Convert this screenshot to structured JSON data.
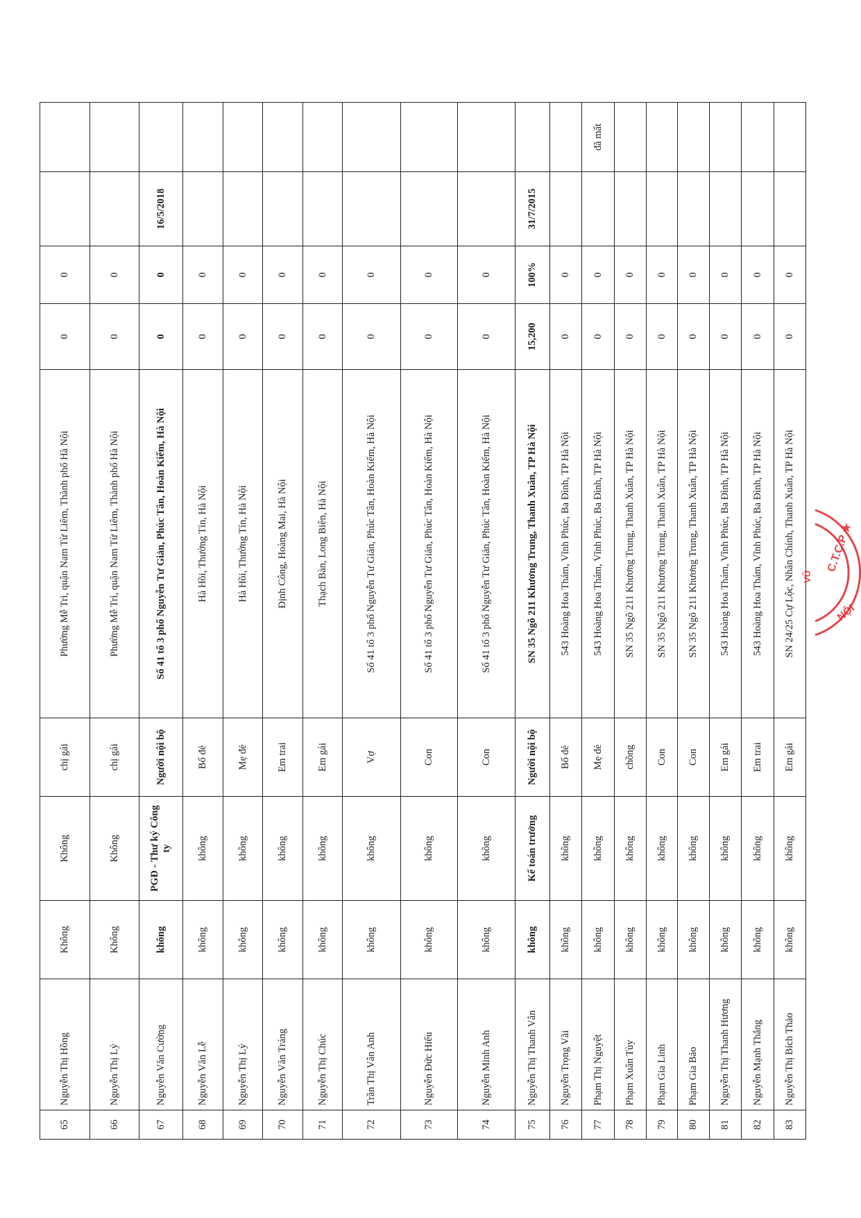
{
  "document": {
    "rows": [
      {
        "stt": "65",
        "name": "Nguyễn Thị Hồng",
        "col3": "Không",
        "position": "Không",
        "relation": "chị gái",
        "address": "Phường Mễ Trì, quận Nam Từ Liêm, Thành phố Hà Nội",
        "shares": "0",
        "percent": "0",
        "date": "",
        "note": "",
        "bold": false
      },
      {
        "stt": "66",
        "name": "Nguyễn Thị Lý",
        "col3": "Không",
        "position": "Không",
        "relation": "chị gái",
        "address": "Phường Mễ Trì, quận Nam Từ Liêm, Thành phố Hà Nội",
        "shares": "0",
        "percent": "0",
        "date": "",
        "note": "",
        "bold": false
      },
      {
        "stt": "67",
        "name": "Nguyễn Văn Cường",
        "col3": "không",
        "position": "PGĐ - Thư ký Công ty",
        "relation": "Người nội bộ",
        "address": "Số 41 tổ 3 phố Nguyễn Tư Giản, Phúc Tân, Hoàn Kiếm, Hà Nội",
        "shares": "0",
        "percent": "0",
        "date": "16/5/2018",
        "note": "",
        "bold": true
      },
      {
        "stt": "68",
        "name": "Nguyễn Văn Lễ",
        "col3": "không",
        "position": "không",
        "relation": "Bố đẻ",
        "address": "Hà Hồi, Thường Tín, Hà Nội",
        "shares": "0",
        "percent": "0",
        "date": "",
        "note": "",
        "bold": false
      },
      {
        "stt": "69",
        "name": "Nguyễn Thị Lý",
        "col3": "không",
        "position": "không",
        "relation": "Mẹ đẻ",
        "address": "Hà Hồi, Thường Tín, Hà Nội",
        "shares": "0",
        "percent": "0",
        "date": "",
        "note": "",
        "bold": false
      },
      {
        "stt": "70",
        "name": "Nguyễn Văn Tráng",
        "col3": "không",
        "position": "không",
        "relation": "Em trai",
        "address": "Định Công, Hoàng Mai, Hà Nội",
        "shares": "0",
        "percent": "0",
        "date": "",
        "note": "",
        "bold": false
      },
      {
        "stt": "71",
        "name": "Nguyễn Thị Chúc",
        "col3": "không",
        "position": "không",
        "relation": "Em gái",
        "address": "Thạch Bàn, Long Biên, Hà Nội",
        "shares": "0",
        "percent": "0",
        "date": "",
        "note": "",
        "bold": false
      },
      {
        "stt": "72",
        "name": "Trần Thị Vân Anh",
        "col3": "không",
        "position": "không",
        "relation": "Vợ",
        "address": "Số 41 tổ 3 phố Nguyễn Tư Giản, Phúc Tân, Hoàn Kiếm, Hà Nội",
        "shares": "0",
        "percent": "0",
        "date": "",
        "note": "",
        "bold": false
      },
      {
        "stt": "73",
        "name": "Nguyễn Đức Hiếu",
        "col3": "không",
        "position": "không",
        "relation": "Con",
        "address": "Số 41 tổ 3 phố Nguyễn Tư Giản, Phúc Tân, Hoàn Kiếm, Hà Nội",
        "shares": "0",
        "percent": "0",
        "date": "",
        "note": "",
        "bold": false
      },
      {
        "stt": "74",
        "name": "Nguyễn Minh Anh",
        "col3": "không",
        "position": "không",
        "relation": "Con",
        "address": "Số 41 tổ 3 phố Nguyễn Tư Giản, Phúc Tân, Hoàn Kiếm, Hà Nội",
        "shares": "0",
        "percent": "0",
        "date": "",
        "note": "",
        "bold": false
      },
      {
        "stt": "75",
        "name": "Nguyễn Thị Thanh Vân",
        "col3": "không",
        "position": "Kế toán trưởng",
        "relation": "Người nội bộ",
        "address": "SN 35 Ngõ 211 Khương Trung, Thanh Xuân, TP Hà Nội",
        "shares": "15,200",
        "percent": "100%",
        "date": "31/7/2015",
        "note": "",
        "bold": true
      },
      {
        "stt": "76",
        "name": "Nguyễn Trọng Vãi",
        "col3": "không",
        "position": "không",
        "relation": "Bố đẻ",
        "address": "543 Hoàng Hoa Thám, Vĩnh Phúc, Ba Đình, TP Hà Nội",
        "shares": "0",
        "percent": "0",
        "date": "",
        "note": "",
        "bold": false
      },
      {
        "stt": "77",
        "name": "Phạm Thị Nguyệt",
        "col3": "không",
        "position": "không",
        "relation": "Mẹ đẻ",
        "address": "543 Hoàng Hoa Thám, Vĩnh Phúc, Ba Đình, TP Hà Nội",
        "shares": "0",
        "percent": "0",
        "date": "",
        "note": "đã mất",
        "bold": false
      },
      {
        "stt": "78",
        "name": "Phạm Xuân Tùy",
        "col3": "không",
        "position": "không",
        "relation": "chồng",
        "address": "SN 35 Ngõ 211 Khương Trung, Thanh Xuân, TP Hà Nội",
        "shares": "0",
        "percent": "0",
        "date": "",
        "note": "",
        "bold": false
      },
      {
        "stt": "79",
        "name": "Phạm Gia Linh",
        "col3": "không",
        "position": "không",
        "relation": "Con",
        "address": "SN 35 Ngõ 211 Khương Trung, Thanh Xuân, TP Hà Nội",
        "shares": "0",
        "percent": "0",
        "date": "",
        "note": "",
        "bold": false
      },
      {
        "stt": "80",
        "name": "Phạm Gia Bảo",
        "col3": "không",
        "position": "không",
        "relation": "Con",
        "address": "SN 35 Ngõ 211 Khương Trung, Thanh Xuân, TP Hà Nội",
        "shares": "0",
        "percent": "0",
        "date": "",
        "note": "",
        "bold": false
      },
      {
        "stt": "81",
        "name": "Nguyễn Thị Thanh Hương",
        "col3": "không",
        "position": "không",
        "relation": "Em gái",
        "address": "543 Hoàng Hoa Thám, Vĩnh Phúc, Ba Đình, TP Hà Nội",
        "shares": "0",
        "percent": "0",
        "date": "",
        "note": "",
        "bold": false
      },
      {
        "stt": "82",
        "name": "Nguyễn Mạnh Thắng",
        "col3": "không",
        "position": "không",
        "relation": "Em trai",
        "address": "543 Hoàng Hoa Thám, Vĩnh Phúc, Ba Đình, TP Hà Nội",
        "shares": "0",
        "percent": "0",
        "date": "",
        "note": "",
        "bold": false
      },
      {
        "stt": "83",
        "name": "Nguyễn Thị Bích Thảo",
        "col3": "không",
        "position": "không",
        "relation": "Em gái",
        "address": "SN 24/25 Cự Lộc, Nhân Chính, Thanh Xuân, TP Hà Nội",
        "shares": "0",
        "percent": "0",
        "date": "",
        "note": "",
        "bold": false
      }
    ],
    "stamp": {
      "text": "C.T.C.P ★ HÀ NỘI",
      "inner": "VŨ",
      "color": "#e0262e"
    }
  }
}
